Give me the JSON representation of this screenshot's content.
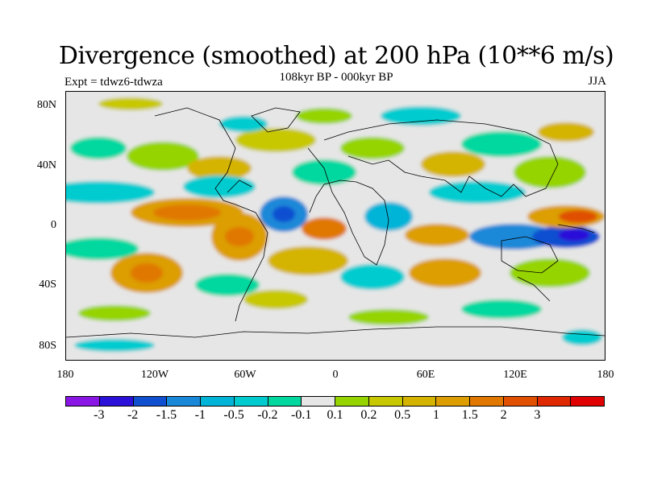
{
  "title": "Divergence (smoothed) at 200 hPa (10**6 m/s)",
  "subtitle": "108kyr BP - 000kyr BP",
  "experiment": "Expt = tdwz6-tdwza",
  "season": "JJA",
  "lat_labels": [
    "80N",
    "40N",
    "0",
    "40S",
    "80S"
  ],
  "lon_labels": [
    "180",
    "120W",
    "60W",
    "0",
    "60E",
    "120E",
    "180"
  ],
  "colorbar": {
    "colors": [
      "#8a16e6",
      "#2a10d8",
      "#0f4fd0",
      "#1a88d8",
      "#00b4d8",
      "#00ccd0",
      "#00d8a0",
      "#e6e6e6",
      "#96d400",
      "#c8c800",
      "#d4b400",
      "#dc9e00",
      "#e07800",
      "#e05000",
      "#e02800",
      "#e00000"
    ],
    "labels": [
      "-3",
      "-2",
      "-1.5",
      "-1",
      "-0.5",
      "-0.2",
      "-0.1",
      "0.1",
      "0.2",
      "0.5",
      "1",
      "1.5",
      "2",
      "3"
    ]
  }
}
